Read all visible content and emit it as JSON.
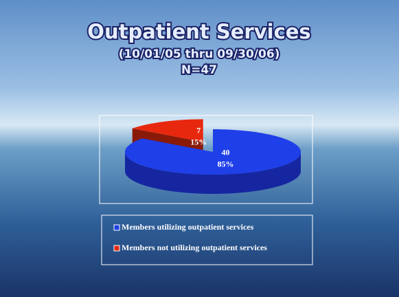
{
  "chart_data": {
    "type": "pie3d",
    "title": "Outpatient Services",
    "subtitle": "(10/01/05 thru 09/30/06)",
    "note": "N=47",
    "categories": [
      "Members utilizing outpatient services",
      "Members not utilizing outpatient services"
    ],
    "values": [
      40,
      7
    ],
    "percent_values": [
      85,
      15
    ],
    "percent_labels": [
      "85%",
      "15%"
    ],
    "colors": [
      "#1f3fe8",
      "#e8280e"
    ],
    "side_colors": [
      "#1626a0",
      "#8a1a08"
    ],
    "exploded": [
      false,
      true
    ],
    "legend": "bottom"
  }
}
